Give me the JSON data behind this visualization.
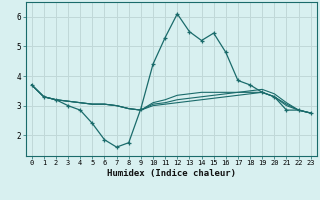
{
  "xlabel": "Humidex (Indice chaleur)",
  "x": [
    0,
    1,
    2,
    3,
    4,
    5,
    6,
    7,
    8,
    9,
    10,
    11,
    12,
    13,
    14,
    15,
    16,
    17,
    18,
    19,
    20,
    21,
    22,
    23
  ],
  "line1": [
    3.7,
    3.3,
    3.2,
    3.0,
    2.85,
    2.4,
    1.85,
    1.6,
    1.75,
    2.9,
    4.4,
    5.3,
    6.1,
    5.5,
    5.2,
    5.45,
    4.8,
    3.85,
    3.7,
    3.45,
    3.3,
    2.85,
    2.85,
    2.75
  ],
  "line2": [
    3.7,
    3.3,
    3.2,
    3.15,
    3.1,
    3.05,
    3.05,
    3.0,
    2.9,
    2.85,
    3.0,
    3.05,
    3.1,
    3.15,
    3.2,
    3.25,
    3.3,
    3.35,
    3.4,
    3.45,
    3.3,
    3.0,
    2.85,
    2.75
  ],
  "line3": [
    3.7,
    3.3,
    3.2,
    3.15,
    3.1,
    3.05,
    3.05,
    3.0,
    2.9,
    2.85,
    3.05,
    3.1,
    3.2,
    3.25,
    3.3,
    3.35,
    3.4,
    3.45,
    3.5,
    3.55,
    3.4,
    3.1,
    2.85,
    2.75
  ],
  "line4": [
    3.7,
    3.3,
    3.2,
    3.15,
    3.1,
    3.05,
    3.05,
    3.0,
    2.9,
    2.85,
    3.1,
    3.2,
    3.35,
    3.4,
    3.45,
    3.45,
    3.45,
    3.45,
    3.45,
    3.45,
    3.3,
    3.05,
    2.85,
    2.75
  ],
  "line_color": "#1a6b6b",
  "bg_color": "#d8f0f0",
  "grid_color": "#c0d8d8",
  "ylim": [
    1.3,
    6.5
  ],
  "xlim": [
    -0.5,
    23.5
  ],
  "yticks": [
    2,
    3,
    4,
    5,
    6
  ]
}
